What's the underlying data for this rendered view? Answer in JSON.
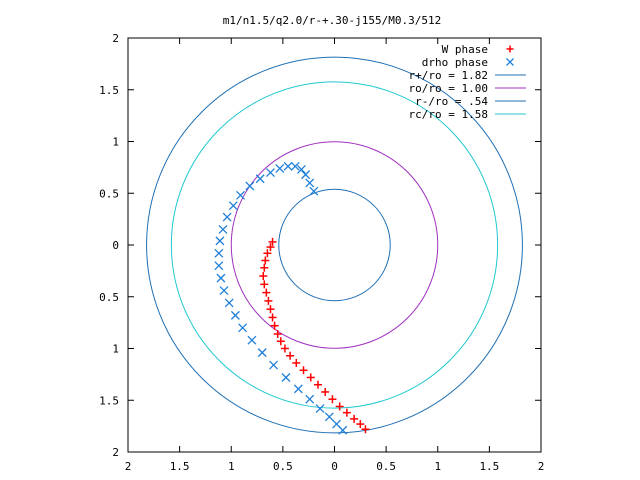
{
  "chart_data": {
    "type": "scatter",
    "title": "m1/n1.5/q2.0/r-+.30-j155/M0.3/512",
    "xlabel": "",
    "ylabel": "",
    "xlim": [
      -2,
      2
    ],
    "ylim": [
      -2,
      2
    ],
    "x_ticks": [
      -2,
      -1.5,
      -1,
      -0.5,
      0,
      0.5,
      1,
      1.5,
      2
    ],
    "x_tick_labels": [
      "2",
      "1.5",
      "1",
      "0.5",
      "0",
      "0.5",
      "1",
      "1.5",
      "2"
    ],
    "y_ticks": [
      2,
      1.5,
      1,
      0.5,
      0,
      -0.5,
      -1,
      -1.5,
      -2
    ],
    "y_tick_labels": [
      "2",
      "1.5",
      "1",
      "0.5",
      "0",
      "0.5",
      "1",
      "1.5",
      "2"
    ],
    "grid": false,
    "legend_position": "top-right",
    "series": [
      {
        "name": "W phase",
        "kind": "points",
        "marker": "+",
        "color": "#ff0000",
        "points": [
          [
            -0.6,
            0.03
          ],
          [
            -0.62,
            -0.02
          ],
          [
            -0.65,
            -0.08
          ],
          [
            -0.67,
            -0.15
          ],
          [
            -0.68,
            -0.22
          ],
          [
            -0.69,
            -0.3
          ],
          [
            -0.68,
            -0.38
          ],
          [
            -0.66,
            -0.46
          ],
          [
            -0.64,
            -0.54
          ],
          [
            -0.62,
            -0.62
          ],
          [
            -0.6,
            -0.7
          ],
          [
            -0.58,
            -0.78
          ],
          [
            -0.55,
            -0.86
          ],
          [
            -0.52,
            -0.93
          ],
          [
            -0.48,
            -1.0
          ],
          [
            -0.43,
            -1.07
          ],
          [
            -0.37,
            -1.14
          ],
          [
            -0.3,
            -1.21
          ],
          [
            -0.23,
            -1.28
          ],
          [
            -0.16,
            -1.35
          ],
          [
            -0.09,
            -1.42
          ],
          [
            -0.02,
            -1.49
          ],
          [
            0.05,
            -1.56
          ],
          [
            0.12,
            -1.62
          ],
          [
            0.19,
            -1.68
          ],
          [
            0.25,
            -1.73
          ],
          [
            0.3,
            -1.78
          ]
        ]
      },
      {
        "name": "drho phase",
        "kind": "points",
        "marker": "x",
        "color": "#1f7fd8",
        "points": [
          [
            -0.2,
            0.52
          ],
          [
            -0.24,
            0.6
          ],
          [
            -0.28,
            0.68
          ],
          [
            -0.32,
            0.73
          ],
          [
            -0.38,
            0.76
          ],
          [
            -0.45,
            0.76
          ],
          [
            -0.53,
            0.74
          ],
          [
            -0.62,
            0.7
          ],
          [
            -0.72,
            0.64
          ],
          [
            -0.82,
            0.57
          ],
          [
            -0.91,
            0.48
          ],
          [
            -0.98,
            0.38
          ],
          [
            -1.04,
            0.27
          ],
          [
            -1.08,
            0.15
          ],
          [
            -1.11,
            0.04
          ],
          [
            -1.12,
            -0.08
          ],
          [
            -1.12,
            -0.2
          ],
          [
            -1.1,
            -0.32
          ],
          [
            -1.07,
            -0.44
          ],
          [
            -1.02,
            -0.56
          ],
          [
            -0.96,
            -0.68
          ],
          [
            -0.89,
            -0.8
          ],
          [
            -0.8,
            -0.92
          ],
          [
            -0.7,
            -1.04
          ],
          [
            -0.59,
            -1.16
          ],
          [
            -0.47,
            -1.28
          ],
          [
            -0.35,
            -1.39
          ],
          [
            -0.24,
            -1.49
          ],
          [
            -0.14,
            -1.58
          ],
          [
            -0.05,
            -1.66
          ],
          [
            0.02,
            -1.73
          ],
          [
            0.08,
            -1.79
          ]
        ]
      },
      {
        "name": "r+/ro = 1.82",
        "kind": "circle",
        "radius": 1.82,
        "color": "#1f6fb4"
      },
      {
        "name": "ro/ro = 1.00",
        "kind": "circle",
        "radius": 1.0,
        "color": "#a030c0"
      },
      {
        "name": "r-/ro = .54",
        "kind": "circle",
        "radius": 0.54,
        "color": "#1f6fb4"
      },
      {
        "name": "rc/ro = 1.58",
        "kind": "circle",
        "radius": 1.58,
        "color": "#20c8d0"
      }
    ]
  }
}
